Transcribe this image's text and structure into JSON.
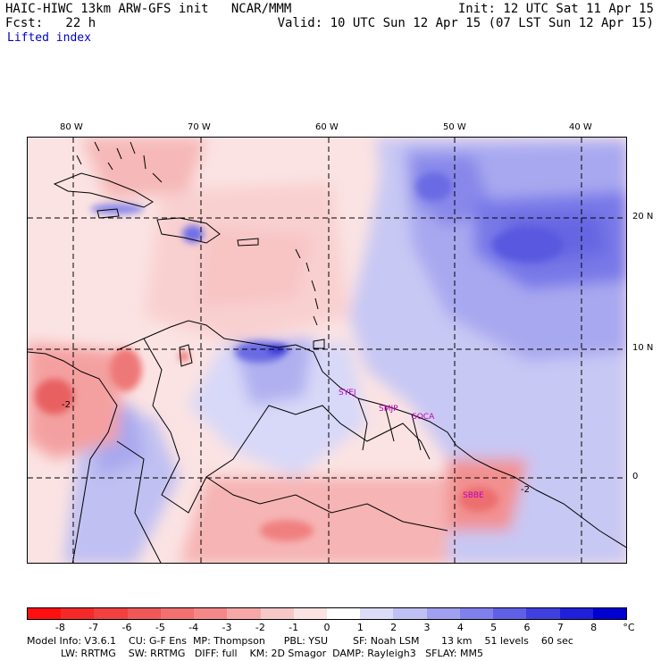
{
  "header": {
    "line1_left": "HAIC-HIWC 13km ARW-GFS init   NCAR/MMM",
    "line1_right": "Init: 12 UTC Sat 11 Apr 15",
    "line2_left": "Fcst:   22 h",
    "line2_right": "Valid: 10 UTC Sun 12 Apr 15 (07 LST Sun 12 Apr 15)",
    "field": "Lifted index"
  },
  "lon_labels": [
    "80 W",
    "70 W",
    "60 W",
    "50 W",
    "40 W"
  ],
  "lat_labels": [
    "20 N",
    "10 N",
    "0"
  ],
  "cities": [
    "SYEJ",
    "SMJP",
    "SOCA",
    "SBBE"
  ],
  "contour_labels": [
    "-2",
    "-2"
  ],
  "colorbar": {
    "labels": [
      "-8",
      "-7",
      "-6",
      "-5",
      "-4",
      "-3",
      "-2",
      "-1",
      "0",
      "1",
      "2",
      "3",
      "4",
      "5",
      "6",
      "7",
      "8"
    ],
    "unit": "°C",
    "colors": [
      "#ff1010",
      "#f42a2a",
      "#f04040",
      "#f05858",
      "#f27070",
      "#f48888",
      "#f6a8a8",
      "#f8c8c8",
      "#fbe3e3",
      "#ffffff",
      "#dcdcf8",
      "#c0c0f4",
      "#a0a0f0",
      "#8080ec",
      "#6060e6",
      "#4040e0",
      "#2020d8",
      "#0000d0"
    ]
  },
  "footer": {
    "line1": "Model Info: V3.6.1    CU: G-F Ens  MP: Thompson      PBL: YSU        SF: Noah LSM       13 km    51 levels    60 sec",
    "line2": "LW: RRTMG    SW: RRTMG   DIFF: full    KM: 2D Smagor  DAMP: Rayleigh3   SFLAY: MM5"
  }
}
